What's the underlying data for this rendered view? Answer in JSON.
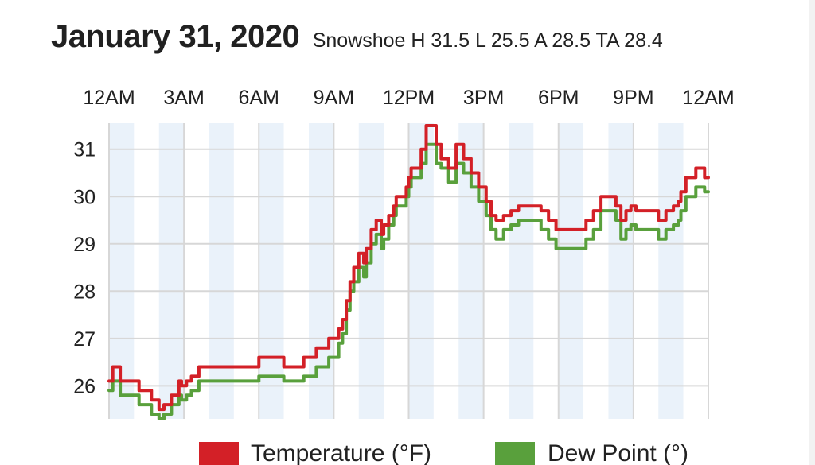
{
  "header": {
    "title": "January 31, 2020",
    "subtitle": "Snowshoe H 31.5 L 25.5 A 28.5 TA 28.4"
  },
  "chart_data": {
    "type": "line",
    "title": "January 31, 2020",
    "subtitle": "Snowshoe H 31.5 L 25.5 A 28.5 TA 28.4",
    "x_unit": "hours",
    "xlim": [
      0,
      24
    ],
    "ylim": [
      25.3,
      31.55
    ],
    "x_ticks": [
      0,
      3,
      6,
      9,
      12,
      15,
      18,
      21,
      24
    ],
    "x_tick_labels": [
      "12AM",
      "3AM",
      "6AM",
      "9AM",
      "12PM",
      "3PM",
      "6PM",
      "9PM",
      "12AM"
    ],
    "y_ticks": [
      26,
      27,
      28,
      29,
      30,
      31
    ],
    "y_tick_labels": [
      "26",
      "27",
      "28",
      "29",
      "30",
      "31"
    ],
    "grid": true,
    "legend_position": "bottom",
    "series": [
      {
        "name": "Temperature (°F)",
        "color": "#d32027",
        "x": [
          0,
          0.15,
          0.3,
          0.45,
          0.6,
          0.8,
          1.0,
          1.2,
          1.5,
          1.7,
          1.85,
          2.0,
          2.2,
          2.5,
          2.8,
          2.9,
          3.1,
          3.3,
          3.45,
          3.6,
          3.8,
          4.1,
          4.4,
          4.8,
          5.5,
          6.0,
          6.5,
          7.0,
          7.2,
          7.8,
          8.0,
          8.3,
          8.5,
          8.8,
          9.0,
          9.2,
          9.35,
          9.5,
          9.65,
          9.8,
          10.0,
          10.2,
          10.3,
          10.5,
          10.7,
          10.9,
          11.0,
          11.2,
          11.4,
          11.5,
          11.7,
          11.9,
          12.0,
          12.1,
          12.3,
          12.5,
          12.7,
          12.9,
          13.1,
          13.3,
          13.6,
          13.9,
          14.2,
          14.5,
          14.8,
          15.1,
          15.3,
          15.5,
          15.8,
          16.1,
          16.4,
          16.7,
          17.0,
          17.3,
          17.6,
          17.9,
          18.2,
          18.5,
          18.8,
          19.1,
          19.4,
          19.7,
          20.0,
          20.3,
          20.5,
          20.7,
          20.9,
          21.1,
          21.4,
          21.7,
          22.0,
          22.3,
          22.6,
          22.8,
          22.9,
          23.1,
          23.3,
          23.5,
          23.7,
          23.85,
          24.0
        ],
        "y": [
          26.1,
          26.4,
          26.4,
          26.1,
          26.1,
          26.1,
          26.1,
          25.9,
          25.9,
          25.7,
          25.7,
          25.5,
          25.6,
          25.8,
          26.1,
          26.0,
          26.1,
          26.2,
          26.2,
          26.4,
          26.4,
          26.4,
          26.4,
          26.4,
          26.4,
          26.6,
          26.6,
          26.4,
          26.4,
          26.6,
          26.6,
          26.8,
          26.8,
          27.0,
          27.0,
          27.2,
          27.4,
          27.8,
          28.2,
          28.5,
          28.8,
          28.6,
          28.9,
          29.3,
          29.5,
          29.2,
          29.4,
          29.6,
          29.8,
          30.0,
          30.0,
          30.2,
          30.4,
          30.6,
          30.6,
          31.0,
          31.5,
          31.5,
          31.1,
          30.8,
          30.6,
          31.1,
          30.8,
          30.5,
          30.2,
          29.9,
          29.6,
          29.5,
          29.6,
          29.7,
          29.8,
          29.8,
          29.8,
          29.7,
          29.5,
          29.3,
          29.3,
          29.3,
          29.3,
          29.5,
          29.7,
          30.0,
          30.0,
          29.8,
          29.5,
          29.7,
          29.8,
          29.7,
          29.7,
          29.7,
          29.5,
          29.7,
          29.8,
          29.9,
          30.1,
          30.4,
          30.4,
          30.6,
          30.6,
          30.4,
          30.4
        ]
      },
      {
        "name": "Dew Point (°)",
        "color": "#59a03c",
        "x": [
          0,
          0.15,
          0.3,
          0.45,
          0.6,
          0.8,
          1.0,
          1.2,
          1.5,
          1.7,
          1.85,
          2.0,
          2.2,
          2.5,
          2.8,
          2.9,
          3.1,
          3.3,
          3.45,
          3.6,
          3.8,
          4.1,
          4.4,
          4.8,
          5.5,
          6.0,
          6.5,
          7.0,
          7.2,
          7.8,
          8.0,
          8.3,
          8.5,
          8.8,
          9.0,
          9.2,
          9.35,
          9.5,
          9.65,
          9.8,
          10.0,
          10.2,
          10.3,
          10.5,
          10.7,
          10.9,
          11.0,
          11.2,
          11.4,
          11.5,
          11.7,
          11.9,
          12.0,
          12.1,
          12.3,
          12.5,
          12.7,
          12.9,
          13.1,
          13.3,
          13.6,
          13.9,
          14.2,
          14.5,
          14.8,
          15.1,
          15.3,
          15.5,
          15.8,
          16.1,
          16.4,
          16.7,
          17.0,
          17.3,
          17.6,
          17.9,
          18.2,
          18.5,
          18.8,
          19.1,
          19.4,
          19.7,
          20.0,
          20.3,
          20.5,
          20.7,
          20.9,
          21.1,
          21.4,
          21.7,
          22.0,
          22.3,
          22.6,
          22.8,
          22.9,
          23.1,
          23.3,
          23.5,
          23.7,
          23.85,
          24.0
        ],
        "y": [
          25.9,
          26.1,
          26.1,
          25.8,
          25.8,
          25.8,
          25.8,
          25.6,
          25.6,
          25.4,
          25.4,
          25.3,
          25.4,
          25.6,
          25.8,
          25.7,
          25.8,
          25.9,
          25.9,
          26.1,
          26.1,
          26.1,
          26.1,
          26.1,
          26.1,
          26.2,
          26.2,
          26.1,
          26.1,
          26.2,
          26.2,
          26.4,
          26.4,
          26.6,
          26.6,
          26.9,
          27.1,
          27.6,
          28.0,
          28.2,
          28.5,
          28.3,
          28.6,
          29.0,
          29.2,
          28.9,
          29.1,
          29.4,
          29.6,
          29.8,
          29.8,
          30.0,
          30.2,
          30.4,
          30.4,
          30.7,
          31.1,
          31.1,
          30.7,
          30.6,
          30.3,
          30.7,
          30.5,
          30.2,
          29.9,
          29.6,
          29.3,
          29.1,
          29.3,
          29.4,
          29.5,
          29.5,
          29.5,
          29.3,
          29.1,
          28.9,
          28.9,
          28.9,
          28.9,
          29.1,
          29.3,
          29.7,
          29.7,
          29.5,
          29.1,
          29.3,
          29.4,
          29.3,
          29.3,
          29.3,
          29.1,
          29.3,
          29.4,
          29.5,
          29.7,
          30.0,
          30.0,
          30.2,
          30.2,
          30.1,
          30.1
        ]
      }
    ]
  }
}
